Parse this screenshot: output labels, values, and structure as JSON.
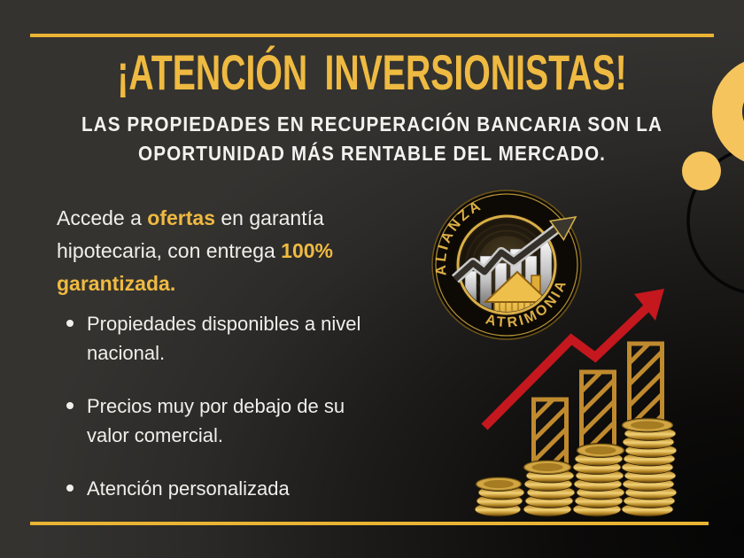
{
  "header": {
    "title": "¡ATENCIÓN INVERSIONISTAS!",
    "subtitle_lines": [
      "LAS PROPIEDADES EN RECUPERACIÓN BANCARIA SON LA",
      "OPORTUNIDAD MÁS RENTABLE DEL MERCADO."
    ]
  },
  "intro": {
    "lines": [
      [
        {
          "t": "Accede a ",
          "gold": false
        },
        {
          "t": "ofertas",
          "gold": true
        },
        {
          "t": " en garantía",
          "gold": false
        }
      ],
      [
        {
          "t": "hipotecaria, con entrega ",
          "gold": false
        },
        {
          "t": "100%",
          "gold": true
        }
      ],
      [
        {
          "t": "garantizada.",
          "gold": true
        }
      ]
    ]
  },
  "bullets": [
    {
      "lines": [
        "Propiedades disponibles a nivel",
        "nacional."
      ]
    },
    {
      "lines": [
        "Precios muy por debajo de su",
        "valor comercial."
      ]
    },
    {
      "lines": [
        "Atención personalizada"
      ]
    }
  ],
  "logo": {
    "arc_top": "ALIANZA",
    "arc_bottom": "PATRIMONIAL"
  },
  "illustration": {
    "coin_stacks": [
      4,
      6,
      8,
      11
    ]
  },
  "colors": {
    "gold": "#EFBA41",
    "gold_deco": "#F5C45C",
    "gold_line": "#E9B334",
    "bar_gold": "#C08A2E",
    "red": "#C4171E",
    "text_white": "#F1EFEA"
  }
}
